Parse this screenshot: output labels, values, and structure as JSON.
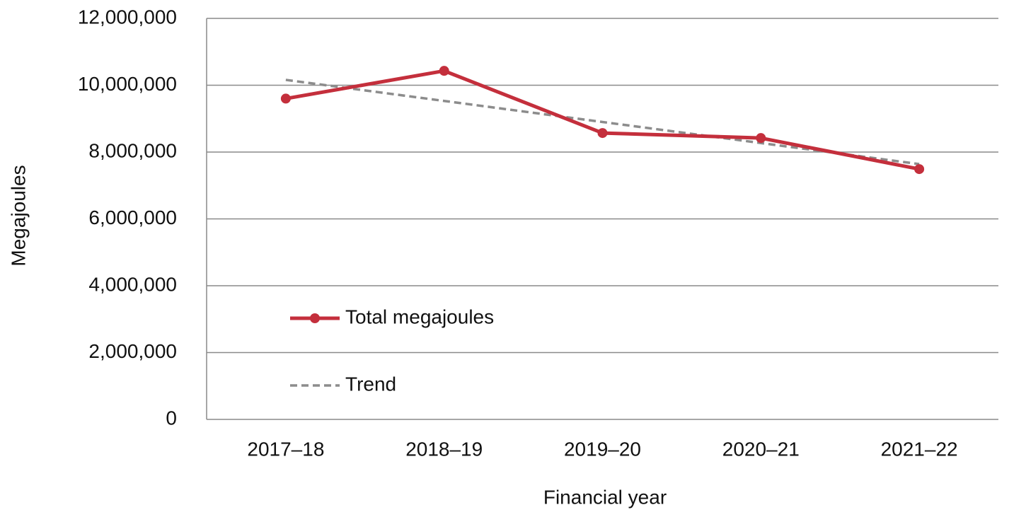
{
  "chart_data": {
    "type": "line",
    "x_label": "Financial year",
    "y_label": "Megajoules",
    "categories": [
      "2017–18",
      "2018–19",
      "2019–20",
      "2020–21",
      "2021–22"
    ],
    "series": [
      {
        "name": "Total megajoules",
        "color": "#c42f3c",
        "markers": true,
        "dashed": false,
        "values": [
          9600000,
          10430000,
          8570000,
          8420000,
          7490000
        ]
      },
      {
        "name": "Trend",
        "color": "#8c8c8c",
        "markers": false,
        "dashed": true,
        "values": [
          10160000,
          9530000,
          8900000,
          8270000,
          7640000
        ]
      }
    ],
    "ylim": [
      0,
      12000000
    ],
    "yticks": [
      0,
      {
        "value": 2000000,
        "label": "2,000,000"
      },
      {
        "value": 4000000,
        "label": "4,000,000"
      },
      {
        "value": 6000000,
        "label": "6,000,000"
      },
      {
        "value": 8000000,
        "label": "8,000,000"
      },
      {
        "value": 10000000,
        "label": "10,000,000"
      },
      {
        "value": 12000000,
        "label": "12,000,000"
      }
    ],
    "grid": true
  }
}
